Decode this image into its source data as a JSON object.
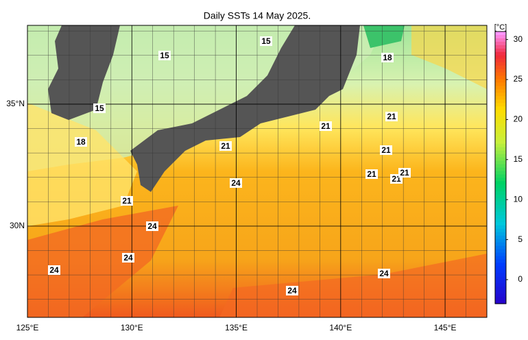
{
  "title": "Daily SSTs 14 May 2025.",
  "map": {
    "xlim": [
      125,
      147
    ],
    "ylim": [
      26.26,
      38.23
    ],
    "xticks": [
      {
        "value": 125,
        "label": "125°E"
      },
      {
        "value": 130,
        "label": "130°E"
      },
      {
        "value": 135,
        "label": "135°E"
      },
      {
        "value": 140,
        "label": "140°E"
      },
      {
        "value": 145,
        "label": "145°E"
      }
    ],
    "yticks": [
      {
        "value": 30,
        "label": "30N"
      },
      {
        "value": 35,
        "label": "35°N"
      }
    ],
    "contour_labels": [
      15,
      15,
      18,
      15,
      21,
      18,
      21,
      21,
      21,
      24,
      21,
      21,
      21,
      21,
      24,
      24,
      24,
      24,
      24
    ]
  },
  "colorbar": {
    "label": "[°C]",
    "lim": [
      -3,
      31
    ],
    "ticks": [
      0,
      5,
      10,
      15,
      20,
      25,
      30
    ]
  }
}
